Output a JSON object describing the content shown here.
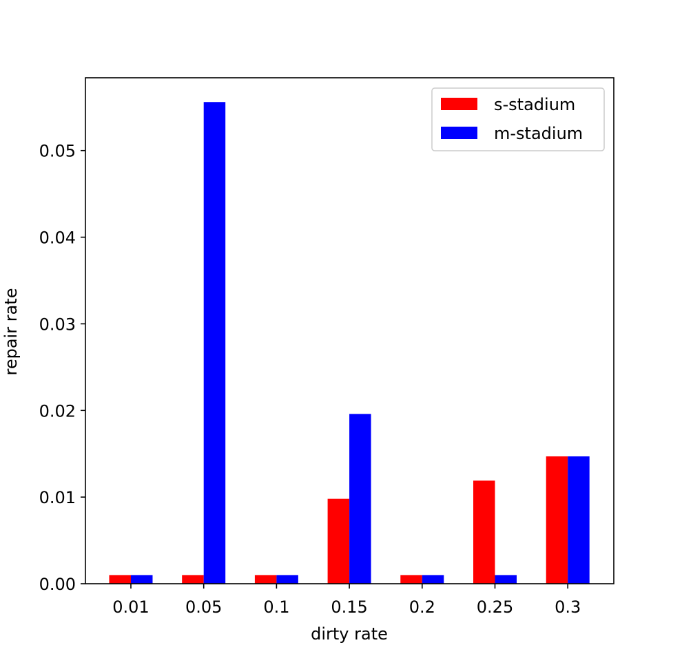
{
  "chart_data": {
    "type": "bar",
    "title": "",
    "xlabel": "dirty rate",
    "ylabel": "repair rate",
    "categories": [
      "0.01",
      "0.05",
      "0.1",
      "0.15",
      "0.2",
      "0.25",
      "0.3"
    ],
    "series": [
      {
        "name": "s-stadium",
        "color": "#ff0000",
        "values": [
          0.001,
          0.001,
          0.001,
          0.0098,
          0.001,
          0.0119,
          0.0147
        ]
      },
      {
        "name": "m-stadium",
        "color": "#0000ff",
        "values": [
          0.001,
          0.0556,
          0.001,
          0.0196,
          0.001,
          0.001,
          0.0147
        ]
      }
    ],
    "ylim": [
      0,
      0.0584
    ],
    "yticks": [
      "0.00",
      "0.01",
      "0.02",
      "0.03",
      "0.04",
      "0.05"
    ],
    "grid": false,
    "legend_position": "upper right"
  }
}
